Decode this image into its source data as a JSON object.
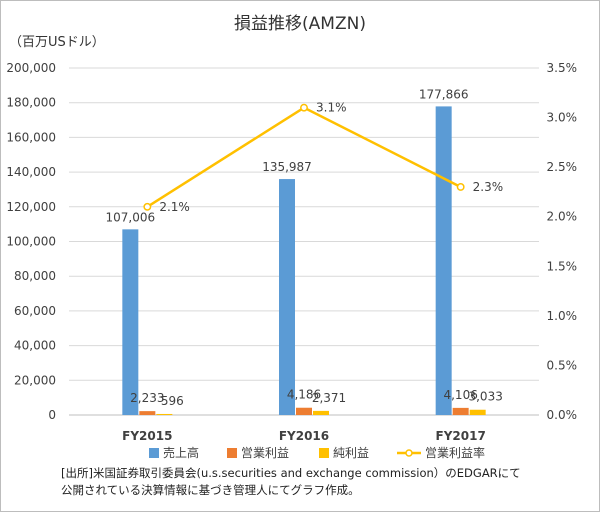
{
  "chart_data": {
    "type": "bar",
    "title": "損益推移(AMZN)",
    "ylabel": "（百万USドル）",
    "categories": [
      "FY2015",
      "FY2016",
      "FY2017"
    ],
    "ylim": [
      0,
      200000
    ],
    "y_ticks": [
      "0",
      "20,000",
      "40,000",
      "60,000",
      "80,000",
      "100,000",
      "120,000",
      "140,000",
      "160,000",
      "180,000",
      "200,000"
    ],
    "y2lim": [
      0,
      3.5
    ],
    "y2_ticks": [
      "0.0%",
      "0.5%",
      "1.0%",
      "1.5%",
      "2.0%",
      "2.5%",
      "3.0%",
      "3.5%"
    ],
    "series": [
      {
        "name": "売上高",
        "type": "bar",
        "axis": "left",
        "color": "#5b9bd5",
        "values": [
          107006,
          135987,
          177866
        ],
        "labels": [
          "107,006",
          "135,987",
          "177,866"
        ]
      },
      {
        "name": "営業利益",
        "type": "bar",
        "axis": "left",
        "color": "#ed7d31",
        "values": [
          2233,
          4186,
          4106
        ],
        "labels": [
          "2,233",
          "4,186",
          "4,106"
        ]
      },
      {
        "name": "純利益",
        "type": "bar",
        "axis": "left",
        "color": "#ffc000",
        "values": [
          596,
          2371,
          3033
        ],
        "labels": [
          "596",
          "2,371",
          "3,033"
        ]
      },
      {
        "name": "営業利益率",
        "type": "line",
        "axis": "right",
        "color": "#ffc000",
        "values": [
          2.1,
          3.1,
          2.3
        ],
        "labels": [
          "2.1%",
          "3.1%",
          "2.3%"
        ]
      }
    ],
    "legend": "bottom",
    "grid": true
  },
  "note_lines": [
    "[出所]米国証券取引委員会(u.s.securities and exchange commission）のEDGARにて",
    "公開されている決算情報に基づき管理人にてグラフ作成。"
  ]
}
